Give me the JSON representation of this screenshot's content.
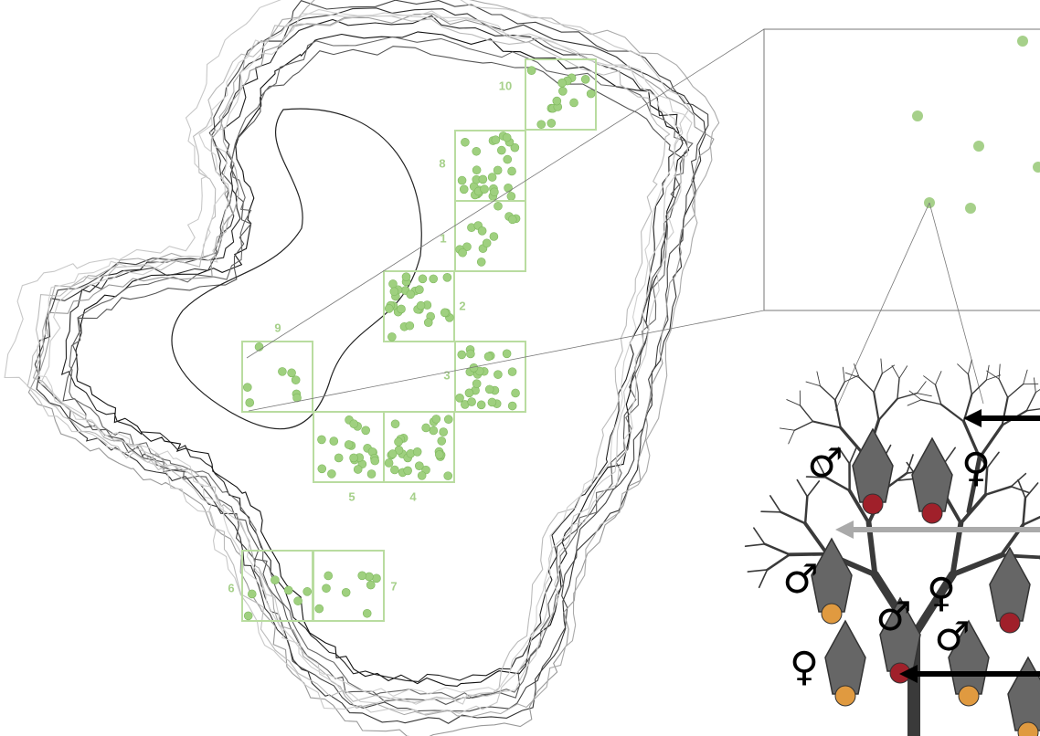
{
  "grid_labels": [
    "10",
    "8",
    "1",
    "2",
    "3",
    "9",
    "5",
    "4",
    "6",
    "7"
  ],
  "sex_symbols": [
    "♂",
    "♀",
    "♂",
    "♀",
    "♂",
    "♂",
    "♀"
  ]
}
